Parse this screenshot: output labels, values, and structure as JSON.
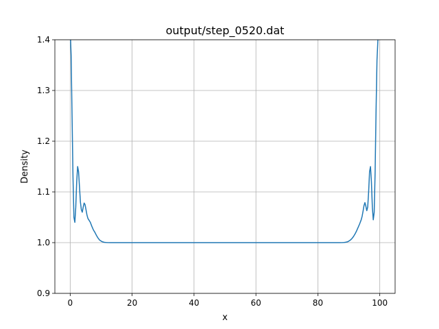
{
  "chart_data": {
    "type": "line",
    "title": "output/step_0520.dat",
    "xlabel": "x",
    "ylabel": "Density",
    "xlim": [
      -4.95,
      104.95
    ],
    "ylim": [
      0.9,
      1.4
    ],
    "grid": true,
    "x_ticks": [
      0,
      20,
      40,
      60,
      80,
      100
    ],
    "y_ticks": [
      0.9,
      1.0,
      1.1,
      1.2,
      1.3,
      1.4
    ],
    "x_tick_labels": [
      "0",
      "20",
      "40",
      "60",
      "80",
      "100"
    ],
    "y_tick_labels": [
      "0.9",
      "1.0",
      "1.1",
      "1.2",
      "1.3",
      "1.4"
    ],
    "line_color": "#1f77b4",
    "series": [
      {
        "x": [
          0.0,
          0.3,
          0.6,
          0.9,
          1.2,
          1.5,
          1.8,
          2.1,
          2.4,
          2.7,
          3.0,
          3.3,
          3.6,
          3.9,
          4.2,
          4.5,
          4.8,
          5.1,
          5.4,
          5.7,
          6.0,
          6.5,
          7.0,
          7.5,
          8.0,
          8.5,
          9.0,
          9.5,
          10.0,
          10.5,
          11.0,
          11.5,
          12.0,
          13.0,
          14.0,
          20.0,
          40.0,
          60.0,
          80.0,
          86.0,
          87.0,
          88.0,
          88.5,
          89.0,
          89.5,
          90.0,
          90.5,
          91.0,
          91.5,
          92.0,
          92.5,
          93.0,
          93.5,
          94.0,
          94.3,
          94.6,
          94.9,
          95.2,
          95.5,
          95.8,
          96.1,
          96.4,
          96.7,
          97.0,
          97.3,
          97.6,
          97.9,
          98.2,
          98.5,
          98.8,
          99.1,
          99.4,
          99.7,
          99.8
        ],
        "y": [
          1.42,
          1.37,
          1.25,
          1.13,
          1.05,
          1.04,
          1.07,
          1.12,
          1.15,
          1.14,
          1.11,
          1.08,
          1.065,
          1.06,
          1.07,
          1.078,
          1.075,
          1.065,
          1.055,
          1.048,
          1.045,
          1.04,
          1.032,
          1.025,
          1.02,
          1.014,
          1.009,
          1.005,
          1.003,
          1.0015,
          1.0007,
          1.0003,
          1.0001,
          1.0,
          1.0,
          1.0,
          1.0,
          1.0,
          1.0,
          1.0,
          1.0,
          1.0001,
          1.0003,
          1.0008,
          1.0015,
          1.003,
          1.005,
          1.008,
          1.012,
          1.017,
          1.023,
          1.03,
          1.037,
          1.045,
          1.052,
          1.062,
          1.073,
          1.079,
          1.072,
          1.063,
          1.07,
          1.1,
          1.14,
          1.15,
          1.12,
          1.07,
          1.045,
          1.06,
          1.14,
          1.26,
          1.36,
          1.4,
          1.42,
          1.43
        ]
      }
    ]
  }
}
